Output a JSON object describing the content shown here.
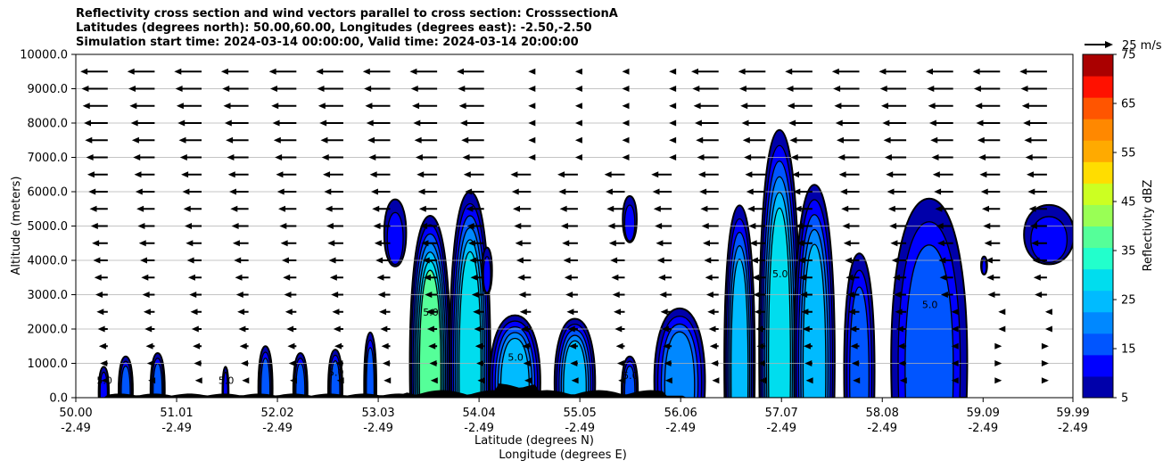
{
  "title_lines": [
    "Reflectivity cross section and wind vectors parallel to cross section: CrosssectionA",
    "Latitudes (degrees north): 50.00,60.00, Longitudes (degrees east): -2.50,-2.50",
    "Simulation start time: 2024-03-14 00:00:00, Valid time: 2024-03-14 20:00:00"
  ],
  "chart_data": {
    "type": "heatmap",
    "ylabel": "Altitude (meters)",
    "xlabel_line1": "Latitude (degrees N)",
    "xlabel_line2": "Longitude (degrees E)",
    "xlim": [
      50.0,
      59.99
    ],
    "ylim": [
      0,
      10000
    ],
    "grid": "horizontal",
    "y_ticks": [
      0,
      1000,
      2000,
      3000,
      4000,
      5000,
      6000,
      7000,
      8000,
      9000,
      10000
    ],
    "y_tick_labels": [
      "0.0",
      "1000.0",
      "2000.0",
      "3000.0",
      "4000.0",
      "5000.0",
      "6000.0",
      "7000.0",
      "8000.0",
      "9000.0",
      "10000.0"
    ],
    "x_ticks": [
      {
        "lat": 50.0,
        "lat_label": "50.00",
        "lon_label": "-2.49"
      },
      {
        "lat": 51.01,
        "lat_label": "51.01",
        "lon_label": "-2.49"
      },
      {
        "lat": 52.02,
        "lat_label": "52.02",
        "lon_label": "-2.49"
      },
      {
        "lat": 53.03,
        "lat_label": "53.03",
        "lon_label": "-2.49"
      },
      {
        "lat": 54.04,
        "lat_label": "54.04",
        "lon_label": "-2.49"
      },
      {
        "lat": 55.05,
        "lat_label": "55.05",
        "lon_label": "-2.49"
      },
      {
        "lat": 56.06,
        "lat_label": "56.06",
        "lon_label": "-2.49"
      },
      {
        "lat": 57.07,
        "lat_label": "57.07",
        "lon_label": "-2.49"
      },
      {
        "lat": 58.08,
        "lat_label": "58.08",
        "lon_label": "-2.49"
      },
      {
        "lat": 59.09,
        "lat_label": "59.09",
        "lon_label": "-2.49"
      },
      {
        "lat": 59.99,
        "lat_label": "59.99",
        "lon_label": "-2.49"
      }
    ],
    "colorbar": {
      "label": "Reflectivity dBZ",
      "range": [
        5,
        75
      ],
      "tick_values": [
        5,
        15,
        25,
        35,
        45,
        55,
        65,
        75
      ],
      "tick_labels": [
        "5",
        "15",
        "25",
        "35",
        "45",
        "55",
        "65",
        "75"
      ],
      "colors": [
        "#0000aa",
        "#0000ff",
        "#0055ff",
        "#0088ff",
        "#00bbff",
        "#00ddee",
        "#22ffcc",
        "#55ff99",
        "#99ff55",
        "#ccff22",
        "#ffdd00",
        "#ffaa00",
        "#ff8800",
        "#ff5500",
        "#ff1100",
        "#aa0000"
      ]
    },
    "wind_key": {
      "label": "25 m/s",
      "speed": 25
    },
    "contour_label": "5.0",
    "wind_levels_m": [
      500,
      1000,
      1500,
      2000,
      2500,
      3000,
      3500,
      4000,
      4500,
      5000,
      5500,
      6000,
      6500,
      7000,
      7500,
      8000,
      8500,
      9000,
      9500
    ],
    "wind_columns_lat": [
      50.32,
      50.79,
      51.26,
      51.73,
      52.21,
      52.68,
      53.15,
      53.62,
      54.09,
      54.56,
      55.03,
      55.5,
      55.97,
      56.44,
      56.91,
      57.38,
      57.85,
      58.32,
      58.79,
      59.26,
      59.73
    ],
    "reflectivity_cells": [
      {
        "lat": 50.28,
        "width_deg": 0.1,
        "top_m": 900,
        "max_dbz": 13
      },
      {
        "lat": 50.5,
        "width_deg": 0.14,
        "top_m": 1200,
        "max_dbz": 15
      },
      {
        "lat": 50.82,
        "width_deg": 0.14,
        "top_m": 1300,
        "max_dbz": 15
      },
      {
        "lat": 51.5,
        "width_deg": 0.06,
        "top_m": 900,
        "max_dbz": 10
      },
      {
        "lat": 51.9,
        "width_deg": 0.14,
        "top_m": 1500,
        "max_dbz": 15
      },
      {
        "lat": 52.25,
        "width_deg": 0.14,
        "top_m": 1300,
        "max_dbz": 15
      },
      {
        "lat": 52.6,
        "width_deg": 0.14,
        "top_m": 1400,
        "max_dbz": 15
      },
      {
        "lat": 52.95,
        "width_deg": 0.12,
        "top_m": 1900,
        "max_dbz": 15
      },
      {
        "lat": 53.2,
        "width_deg": 0.22,
        "top_m": 6100,
        "max_dbz": 12,
        "base_m": 3500
      },
      {
        "lat": 53.55,
        "width_deg": 0.4,
        "top_m": 5300,
        "max_dbz": 35
      },
      {
        "lat": 53.95,
        "width_deg": 0.4,
        "top_m": 6000,
        "max_dbz": 30
      },
      {
        "lat": 54.12,
        "width_deg": 0.1,
        "top_m": 4600,
        "max_dbz": 12,
        "base_m": 2800
      },
      {
        "lat": 54.4,
        "width_deg": 0.5,
        "top_m": 2400,
        "max_dbz": 25
      },
      {
        "lat": 55.0,
        "width_deg": 0.4,
        "top_m": 2300,
        "max_dbz": 25
      },
      {
        "lat": 55.55,
        "width_deg": 0.14,
        "top_m": 6100,
        "max_dbz": 12,
        "base_m": 4300
      },
      {
        "lat": 55.55,
        "width_deg": 0.16,
        "top_m": 1200,
        "max_dbz": 15
      },
      {
        "lat": 56.05,
        "width_deg": 0.5,
        "top_m": 2600,
        "max_dbz": 20
      },
      {
        "lat": 56.65,
        "width_deg": 0.3,
        "top_m": 5600,
        "max_dbz": 25
      },
      {
        "lat": 57.05,
        "width_deg": 0.4,
        "top_m": 7800,
        "max_dbz": 30
      },
      {
        "lat": 57.4,
        "width_deg": 0.4,
        "top_m": 6200,
        "max_dbz": 25
      },
      {
        "lat": 57.85,
        "width_deg": 0.3,
        "top_m": 4200,
        "max_dbz": 15
      },
      {
        "lat": 58.55,
        "width_deg": 0.75,
        "top_m": 5800,
        "max_dbz": 15
      },
      {
        "lat": 59.1,
        "width_deg": 0.06,
        "top_m": 4200,
        "max_dbz": 10,
        "base_m": 3500
      },
      {
        "lat": 59.75,
        "width_deg": 0.5,
        "top_m": 5900,
        "max_dbz": 12,
        "base_m": 3600
      }
    ]
  }
}
